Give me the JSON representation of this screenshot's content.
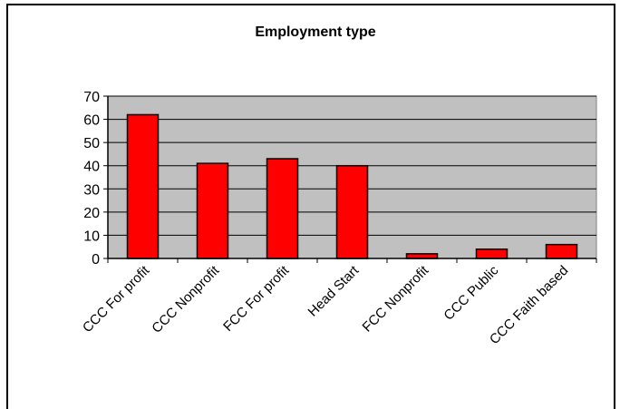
{
  "chart_data": {
    "type": "bar",
    "title": "Employment type",
    "xlabel": "",
    "ylabel": "",
    "categories": [
      "CCC For profit",
      "CCC Nonprofit",
      "FCC For profit",
      "Head Start",
      "FCC Nonprofit",
      "CCC Public",
      "CCC Faith based"
    ],
    "values": [
      62,
      41,
      43,
      40,
      2,
      4,
      6
    ],
    "ylim": [
      0,
      70
    ],
    "yticks": [
      "0",
      "10",
      "20",
      "30",
      "40",
      "50",
      "60",
      "70"
    ],
    "grid": true,
    "legend": "none",
    "colors": {
      "bar_fill": "#ff0000",
      "bar_stroke": "#000000",
      "plot_background": "#c0c0c0",
      "gridline": "#000000"
    }
  }
}
